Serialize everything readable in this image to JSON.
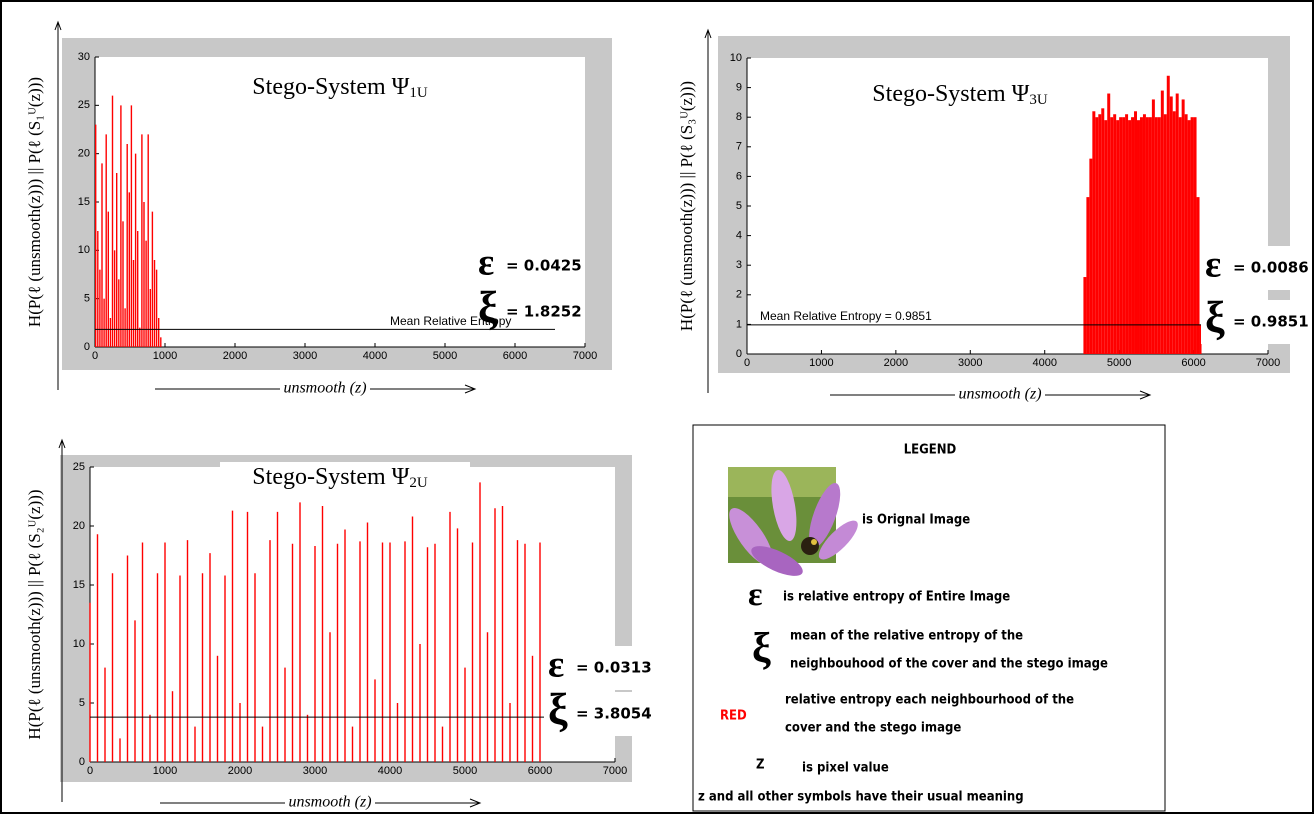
{
  "chart_data": [
    {
      "type": "spike",
      "title": "Stego-System Ψ",
      "title_subscript": "1U",
      "y_label": "H(P(ℓ (unsmooth(z))) || P(ℓ (S₁ᵁ(z)))",
      "x_label": "unsmooth (z)",
      "x": [
        10,
        40,
        70,
        100,
        130,
        160,
        190,
        220,
        250,
        280,
        310,
        340,
        370,
        400,
        430,
        460,
        490,
        520,
        550,
        580,
        610,
        640,
        670,
        700,
        730,
        760,
        790,
        820,
        850,
        880,
        910,
        940
      ],
      "values": [
        23,
        12,
        8,
        19,
        5,
        22,
        14,
        3,
        26,
        10,
        18,
        7,
        25,
        13,
        4,
        21,
        16,
        25,
        9,
        20,
        12,
        2,
        22,
        15,
        11,
        22,
        6,
        14,
        9,
        8,
        3,
        1
      ],
      "color": "#ff0000",
      "xlim": [
        0,
        7000
      ],
      "xticks": [
        0,
        1000,
        2000,
        3000,
        4000,
        5000,
        6000,
        7000
      ],
      "ylim": [
        0,
        30
      ],
      "yticks": [
        0,
        5,
        10,
        15,
        20,
        25,
        30
      ],
      "mean_line": {
        "value": 1.8252,
        "label": "Mean Relative Entropy"
      },
      "annotations": [
        {
          "symbol": "ε",
          "text": "= 0.0425"
        },
        {
          "symbol": "ξ",
          "text": "= 1.8252"
        }
      ]
    },
    {
      "type": "spike",
      "title": "Stego-System Ψ",
      "title_subscript": "2U",
      "y_label": "H(P(ℓ (unsmooth(z))) || P(ℓ (S₂ᵁ(z)))",
      "x_label": "unsmooth (z)",
      "x": [
        0,
        100,
        200,
        300,
        400,
        500,
        600,
        700,
        800,
        900,
        1000,
        1100,
        1200,
        1300,
        1400,
        1500,
        1600,
        1700,
        1800,
        1900,
        2000,
        2100,
        2200,
        2300,
        2400,
        2500,
        2600,
        2700,
        2800,
        2900,
        3000,
        3100,
        3200,
        3300,
        3400,
        3500,
        3600,
        3700,
        3800,
        3900,
        4000,
        4100,
        4200,
        4300,
        4400,
        4500,
        4600,
        4700,
        4800,
        4900,
        5000,
        5100,
        5200,
        5300,
        5400,
        5500,
        5600,
        5700,
        5800,
        5900,
        6000
      ],
      "values": [
        13.5,
        19.3,
        8,
        16,
        2,
        17.5,
        12,
        18.6,
        4,
        16,
        18.6,
        6,
        15.8,
        18.8,
        3,
        16,
        17.7,
        9,
        15.8,
        21.3,
        5,
        21.2,
        16,
        3,
        18.8,
        21.2,
        8,
        18.5,
        22,
        4,
        18.3,
        21.7,
        11,
        18.5,
        19.7,
        3,
        18.7,
        20.3,
        7,
        18.6,
        18.6,
        5,
        18.7,
        20.8,
        10,
        18.2,
        18.5,
        3,
        21.2,
        19.8,
        8,
        18.6,
        23.7,
        11,
        21.5,
        21.7,
        5,
        18.8,
        18.5,
        9,
        18.6
      ],
      "color": "#ff0000",
      "xlim": [
        0,
        7000
      ],
      "xticks": [
        0,
        1000,
        2000,
        3000,
        4000,
        5000,
        6000,
        7000
      ],
      "ylim": [
        0,
        25
      ],
      "yticks": [
        0,
        5,
        10,
        15,
        20,
        25
      ],
      "mean_line": {
        "value": 3.8054
      },
      "annotations": [
        {
          "symbol": "ε",
          "text": "= 0.0313"
        },
        {
          "symbol": "ξ",
          "text": "= 3.8054"
        }
      ]
    },
    {
      "type": "bar",
      "title": "Stego-System Ψ",
      "title_subscript": "3U",
      "y_label": "H(P(ℓ (unsmooth(z))) || P(ℓ (S₃ᵁ(z)))",
      "x_label": "unsmooth (z)",
      "x": [
        4520,
        4560,
        4600,
        4640,
        4680,
        4720,
        4760,
        4800,
        4840,
        4880,
        4920,
        4960,
        5000,
        5040,
        5080,
        5120,
        5160,
        5200,
        5240,
        5280,
        5320,
        5360,
        5400,
        5440,
        5480,
        5520,
        5560,
        5600,
        5640,
        5680,
        5720,
        5760,
        5800,
        5840,
        5880,
        5920,
        5960,
        6000,
        6040,
        6080
      ],
      "values": [
        2.6,
        5.3,
        6.6,
        8.2,
        8.0,
        8.1,
        8.3,
        7.9,
        8.8,
        8.0,
        8.1,
        7.9,
        8.0,
        8.0,
        8.1,
        7.9,
        8.0,
        8.2,
        7.9,
        8.0,
        8.1,
        8.0,
        8.0,
        8.6,
        8.0,
        8.0,
        8.9,
        8.1,
        9.4,
        8.7,
        8.2,
        8.8,
        8.0,
        8.6,
        8.1,
        7.9,
        8.0,
        8.0,
        5.3,
        1
      ],
      "color": "#ff0000",
      "xlim": [
        0,
        7000
      ],
      "xticks": [
        0,
        1000,
        2000,
        3000,
        4000,
        5000,
        6000,
        7000
      ],
      "ylim": [
        0,
        10
      ],
      "yticks": [
        0,
        1,
        2,
        3,
        4,
        5,
        6,
        7,
        8,
        9,
        10
      ],
      "mean_line": {
        "value": 0.9851,
        "label": "Mean Relative Entropy  =  0.9851"
      },
      "annotations": [
        {
          "symbol": "ε",
          "text": "= 0.0086"
        },
        {
          "symbol": "ξ",
          "text": "= 0.9851"
        }
      ]
    }
  ],
  "legend": {
    "title": "LEGEND",
    "image_text": "is Orignal Image",
    "epsilon_symbol": "ε",
    "epsilon_text": "is relative entropy of Entire Image",
    "xi_symbol": "ξ",
    "xi_lines": [
      "mean of the relative entropy of the",
      "neighbouhood of the  cover and the stego image"
    ],
    "red_label": "RED",
    "red_lines": [
      "relative entropy each neighbourhood of the",
      "cover and the stego image"
    ],
    "z_symbol": "Z",
    "z_text": "is pixel value",
    "footer": "z and all other symbols have their  usual meaning"
  }
}
